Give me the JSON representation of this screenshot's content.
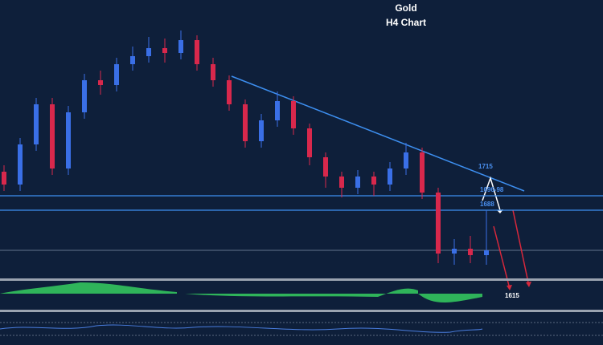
{
  "chart_data": {
    "type": "candlestick",
    "title": "Gold",
    "subtitle": "H4 Chart",
    "categories": [
      null,
      null,
      null,
      null,
      null,
      null,
      null,
      null,
      null,
      null,
      null,
      null,
      null,
      null,
      null,
      null,
      null,
      null,
      null,
      null,
      null,
      null,
      null,
      null,
      null,
      null,
      null,
      null,
      null,
      null,
      null
    ],
    "open": [
      1712,
      1704,
      1729,
      1754,
      1714,
      1749,
      1769,
      1766,
      1779,
      1784,
      1789,
      1786,
      1794,
      1779,
      1769,
      1754,
      1731,
      1744,
      1756,
      1739,
      1721,
      1709,
      1702,
      1709,
      1704,
      1714,
      1724,
      1699,
      1661,
      1664,
      1660
    ],
    "high": [
      1716,
      1733,
      1758,
      1758,
      1753,
      1773,
      1775,
      1783,
      1790,
      1796,
      1795,
      1800,
      1797,
      1783,
      1772,
      1757,
      1748,
      1762,
      1759,
      1742,
      1724,
      1712,
      1713,
      1712,
      1718,
      1730,
      1727,
      1702,
      1670,
      1672,
      1688
    ],
    "low": [
      1700,
      1700,
      1725,
      1710,
      1710,
      1745,
      1760,
      1762,
      1775,
      1780,
      1780,
      1782,
      1775,
      1765,
      1750,
      1727,
      1727,
      1740,
      1735,
      1716,
      1702,
      1696,
      1698,
      1697,
      1700,
      1710,
      1695,
      1655,
      1654,
      1655,
      1654
    ],
    "close": [
      1704,
      1729,
      1754,
      1714,
      1749,
      1769,
      1766,
      1779,
      1784,
      1789,
      1786,
      1794,
      1779,
      1769,
      1754,
      1731,
      1744,
      1756,
      1739,
      1721,
      1709,
      1702,
      1709,
      1704,
      1714,
      1724,
      1699,
      1661,
      1664,
      1660,
      1663
    ],
    "up_color": "#3a6fe6",
    "down_color": "#d8284c",
    "ylim": [
      1646,
      1819
    ],
    "levels": [
      {
        "value": 1697,
        "label": "1696-98"
      },
      {
        "value": 1688,
        "label": "1688"
      }
    ],
    "trend_label": 1715,
    "target": 1615
  }
}
